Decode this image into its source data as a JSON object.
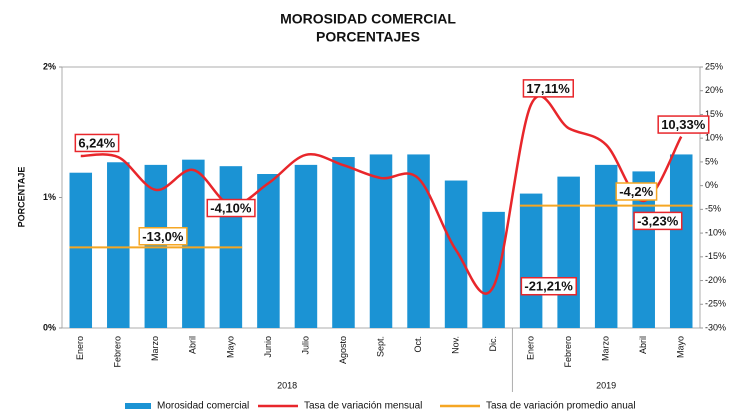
{
  "chart_data": {
    "type": "bar_line",
    "title": "MOROSIDAD COMERCIAL",
    "subtitle": "PORCENTAJES",
    "y_label": "PORCENTAJE",
    "categories": [
      "Enero",
      "Febrero",
      "Marzo",
      "Abril",
      "Mayo",
      "Junio",
      "Julio",
      "Agosto",
      "Sept.",
      "Oct.",
      "Nov.",
      "Dic.",
      "Enero",
      "Febrero",
      "Marzo",
      "Abril",
      "Mayo"
    ],
    "groups": [
      {
        "name": "2018",
        "span": [
          0,
          11
        ]
      },
      {
        "name": "2019",
        "span": [
          12,
          16
        ]
      }
    ],
    "series": [
      {
        "name": "Morosidad comercial",
        "type": "bar",
        "color": "#1b93d4",
        "values": [
          1.19,
          1.27,
          1.25,
          1.29,
          1.24,
          1.18,
          1.25,
          1.31,
          1.33,
          1.33,
          1.13,
          0.89,
          1.03,
          1.16,
          1.25,
          1.2,
          1.33
        ]
      },
      {
        "name": "Tasa de variación mensual",
        "type": "line",
        "axis": "y2",
        "color": "#e8262b",
        "values": [
          6.24,
          6.0,
          -0.9,
          3.3,
          -4.1,
          0.5,
          6.5,
          4.3,
          1.6,
          1.5,
          -13.6,
          -21.21,
          17.11,
          12.1,
          8.6,
          -3.23,
          10.33
        ],
        "value_labels": [
          "6,24%",
          null,
          null,
          null,
          "-4,10%",
          null,
          null,
          null,
          null,
          null,
          null,
          "-21,21%",
          "17,11%",
          null,
          null,
          "-3,23%",
          "10,33%"
        ]
      },
      {
        "name": "Tasa de variación promedio anual",
        "type": "level",
        "axis": "y2",
        "color": "#f5a623",
        "values": [
          -13.0,
          -13.0,
          -13.0,
          -13.0,
          -13.0,
          null,
          null,
          null,
          null,
          null,
          null,
          null,
          -4.2,
          -4.2,
          -4.2,
          -4.2,
          -4.2
        ],
        "value_labels": [
          null,
          null,
          "-13,0%",
          null,
          null,
          null,
          null,
          null,
          null,
          null,
          null,
          null,
          null,
          null,
          "-4,2%",
          null,
          null
        ]
      }
    ],
    "ylim": [
      0,
      2
    ],
    "yticks": [
      {
        "value": 0,
        "label": "0%"
      },
      {
        "value": 1,
        "label": "1%"
      },
      {
        "value": 2,
        "label": "2%"
      }
    ],
    "y2lim": [
      -30,
      25
    ],
    "y2ticks": [
      {
        "value": -30,
        "label": "-30%"
      },
      {
        "value": -25,
        "label": "-25%"
      },
      {
        "value": -20,
        "label": "-20%"
      },
      {
        "value": -15,
        "label": "-15%"
      },
      {
        "value": -10,
        "label": "-10%"
      },
      {
        "value": -5,
        "label": "-5%"
      },
      {
        "value": 0,
        "label": "0%"
      },
      {
        "value": 5,
        "label": "5%"
      },
      {
        "value": 10,
        "label": "10%"
      },
      {
        "value": 15,
        "label": "15%"
      },
      {
        "value": 20,
        "label": "20%"
      },
      {
        "value": 25,
        "label": "25%"
      }
    ],
    "legend": "bottom"
  }
}
